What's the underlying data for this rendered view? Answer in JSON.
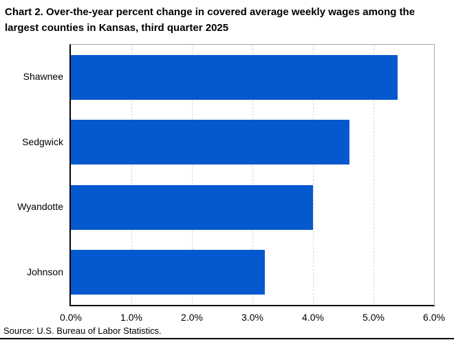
{
  "header": {
    "title_lines": [
      "Chart 2. Over-the-year percent change in covered average weekly wages among the",
      "largest counties in Kansas, third quarter 2025"
    ]
  },
  "footer": {
    "source": "Source: U.S. Bureau of Labor Statistics."
  },
  "colors": {
    "bar": "#0558CE",
    "gridline": "#d9d9d9",
    "plot_border": "#a6a6a6",
    "axis": "#000000",
    "text": "#000000"
  },
  "chart_data": {
    "type": "bar",
    "orientation": "horizontal",
    "title": "Chart 2. Over-the-year percent change in covered average weekly wages among the largest counties in Kansas, third quarter 2025",
    "categories": [
      "Shawnee",
      "Sedgwick",
      "Wyandotte",
      "Johnson"
    ],
    "values": [
      5.4,
      4.6,
      4.0,
      3.2
    ],
    "value_unit": "percent",
    "xlabel": "",
    "ylabel": "",
    "xlim": [
      0,
      6
    ],
    "x_tick_labels": [
      "0.0%",
      "1.0%",
      "2.0%",
      "3.0%",
      "4.0%",
      "5.0%",
      "6.0%"
    ],
    "x_tick_values": [
      0,
      1,
      2,
      3,
      4,
      5,
      6
    ],
    "grid": "vertical-dashed",
    "legend_position": "none",
    "source": "Source: U.S. Bureau of Labor Statistics."
  }
}
